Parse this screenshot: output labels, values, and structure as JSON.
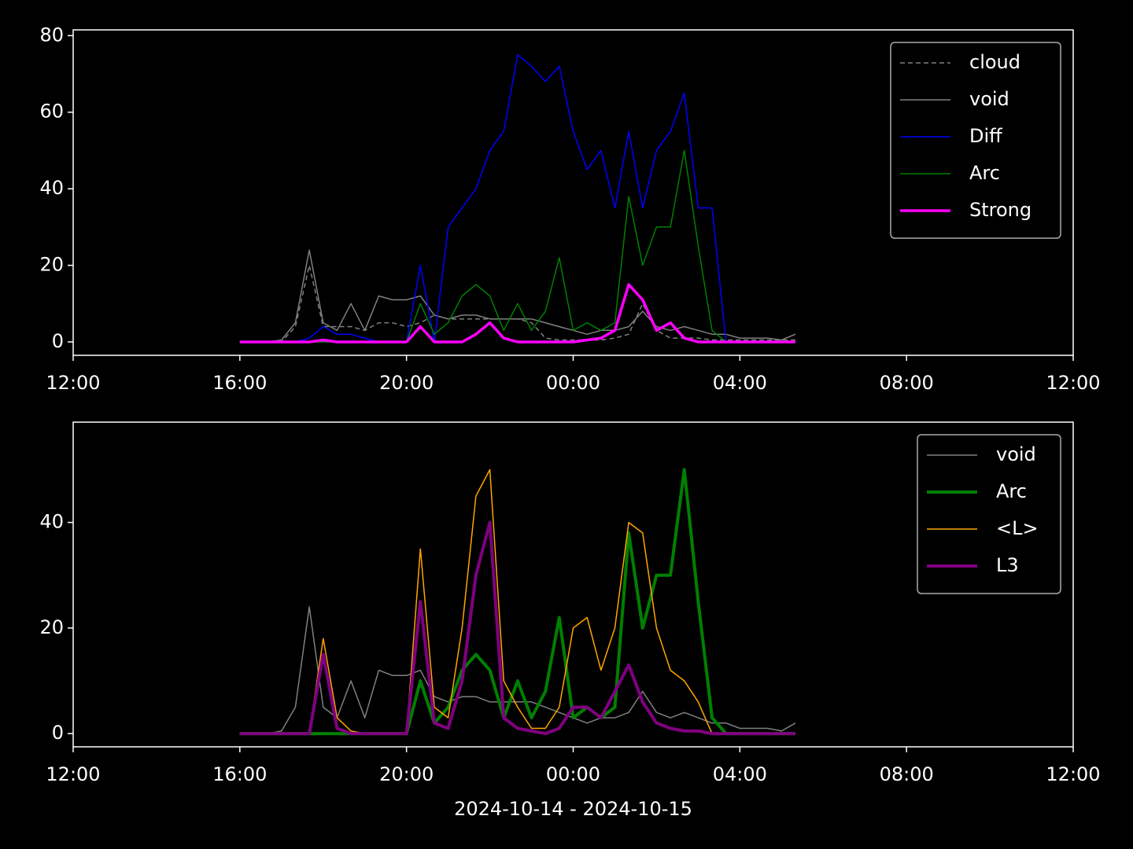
{
  "chart_data": [
    {
      "type": "line",
      "x": [
        "2024-10-14T16:00",
        "2024-10-14T16:20",
        "2024-10-14T16:40",
        "2024-10-14T17:00",
        "2024-10-14T17:20",
        "2024-10-14T17:40",
        "2024-10-14T18:00",
        "2024-10-14T18:20",
        "2024-10-14T18:40",
        "2024-10-14T19:00",
        "2024-10-14T19:20",
        "2024-10-14T19:40",
        "2024-10-14T20:00",
        "2024-10-14T20:20",
        "2024-10-14T20:40",
        "2024-10-14T21:00",
        "2024-10-14T21:20",
        "2024-10-14T21:40",
        "2024-10-14T22:00",
        "2024-10-14T22:20",
        "2024-10-14T22:40",
        "2024-10-14T23:00",
        "2024-10-14T23:20",
        "2024-10-14T23:40",
        "2024-10-15T00:00",
        "2024-10-15T00:20",
        "2024-10-15T00:40",
        "2024-10-15T01:00",
        "2024-10-15T01:20",
        "2024-10-15T01:40",
        "2024-10-15T02:00",
        "2024-10-15T02:20",
        "2024-10-15T02:40",
        "2024-10-15T03:00",
        "2024-10-15T03:20",
        "2024-10-15T03:40",
        "2024-10-15T04:00",
        "2024-10-15T04:20",
        "2024-10-15T04:40",
        "2024-10-15T05:00",
        "2024-10-15T05:20"
      ],
      "series": [
        {
          "name": "cloud",
          "color": "#808080",
          "linestyle": "dashed",
          "linewidth": 1.5,
          "values": [
            0,
            0,
            0,
            0,
            4,
            20,
            4,
            4,
            4,
            3,
            5,
            5,
            4,
            5,
            7,
            6,
            6,
            6,
            6,
            6,
            6,
            5,
            1,
            0.5,
            0.5,
            0.5,
            0.5,
            1,
            2,
            10,
            3,
            1,
            1,
            1,
            0.5,
            0.5,
            0.5,
            0.5,
            0.5,
            0.5,
            0.5
          ]
        },
        {
          "name": "void",
          "color": "#808080",
          "linestyle": "solid",
          "linewidth": 1.5,
          "values": [
            0,
            0,
            0,
            0.5,
            5,
            24,
            5,
            3,
            10,
            3,
            12,
            11,
            11,
            12,
            7,
            6,
            7,
            7,
            6,
            6,
            6,
            6,
            5,
            4,
            3,
            2,
            3,
            3,
            4,
            8,
            4,
            3,
            4,
            3,
            2,
            2,
            1,
            1,
            1,
            0.5,
            2
          ]
        },
        {
          "name": "Diff",
          "color": "#0000ff",
          "linestyle": "solid",
          "linewidth": 1.5,
          "values": [
            0,
            0,
            0,
            0,
            0,
            1,
            4,
            2,
            2,
            1,
            0,
            0,
            0,
            20,
            0,
            30,
            35,
            40,
            50,
            55,
            75,
            72,
            68,
            72,
            55,
            45,
            50,
            35,
            55,
            35,
            50,
            55,
            65,
            35,
            35,
            0,
            0,
            0,
            0,
            0,
            0
          ]
        },
        {
          "name": "Arc",
          "color": "#008000",
          "linestyle": "solid",
          "linewidth": 1.5,
          "values": [
            0,
            0,
            0,
            0,
            0,
            0,
            0,
            0,
            0,
            0,
            0,
            0,
            0,
            10,
            2,
            5,
            12,
            15,
            12,
            3,
            10,
            3,
            8,
            22,
            3,
            5,
            3,
            5,
            38,
            20,
            30,
            30,
            50,
            25,
            3,
            0,
            0,
            0,
            0,
            0,
            0
          ]
        },
        {
          "name": "Strong",
          "color": "#ff00ff",
          "linestyle": "solid",
          "linewidth": 3.5,
          "values": [
            0,
            0,
            0,
            0,
            0,
            0,
            0.5,
            0,
            0,
            0,
            0,
            0,
            0,
            4,
            0,
            0,
            0,
            2,
            5,
            1,
            0,
            0,
            0,
            0,
            0,
            0.5,
            1,
            3,
            15,
            11,
            3,
            5,
            1,
            0,
            0,
            0,
            0,
            0,
            0,
            0,
            0
          ]
        }
      ],
      "xlim": [
        "2024-10-14T12:00",
        "2024-10-15T12:00"
      ],
      "xticks": [
        {
          "value": "2024-10-14T12:00",
          "label": "12:00"
        },
        {
          "value": "2024-10-14T16:00",
          "label": "16:00"
        },
        {
          "value": "2024-10-14T20:00",
          "label": "20:00"
        },
        {
          "value": "2024-10-15T00:00",
          "label": "00:00"
        },
        {
          "value": "2024-10-15T04:00",
          "label": "04:00"
        },
        {
          "value": "2024-10-15T08:00",
          "label": "08:00"
        },
        {
          "value": "2024-10-15T12:00",
          "label": "12:00"
        }
      ],
      "ylim": [
        -3.5,
        81.5
      ],
      "yticks": [
        0,
        20,
        40,
        60,
        80
      ],
      "legend": "upper right"
    },
    {
      "type": "line",
      "xlabel": "2024-10-14 - 2024-10-15",
      "x": [
        "2024-10-14T16:00",
        "2024-10-14T16:20",
        "2024-10-14T16:40",
        "2024-10-14T17:00",
        "2024-10-14T17:20",
        "2024-10-14T17:40",
        "2024-10-14T18:00",
        "2024-10-14T18:20",
        "2024-10-14T18:40",
        "2024-10-14T19:00",
        "2024-10-14T19:20",
        "2024-10-14T19:40",
        "2024-10-14T20:00",
        "2024-10-14T20:20",
        "2024-10-14T20:40",
        "2024-10-14T21:00",
        "2024-10-14T21:20",
        "2024-10-14T21:40",
        "2024-10-14T22:00",
        "2024-10-14T22:20",
        "2024-10-14T22:40",
        "2024-10-14T23:00",
        "2024-10-14T23:20",
        "2024-10-14T23:40",
        "2024-10-15T00:00",
        "2024-10-15T00:20",
        "2024-10-15T00:40",
        "2024-10-15T01:00",
        "2024-10-15T01:20",
        "2024-10-15T01:40",
        "2024-10-15T02:00",
        "2024-10-15T02:20",
        "2024-10-15T02:40",
        "2024-10-15T03:00",
        "2024-10-15T03:20",
        "2024-10-15T03:40",
        "2024-10-15T04:00",
        "2024-10-15T04:20",
        "2024-10-15T04:40",
        "2024-10-15T05:00",
        "2024-10-15T05:20"
      ],
      "series": [
        {
          "name": "void",
          "color": "#808080",
          "linestyle": "solid",
          "linewidth": 1.5,
          "values": [
            0,
            0,
            0,
            0.5,
            5,
            24,
            5,
            3,
            10,
            3,
            12,
            11,
            11,
            12,
            7,
            6,
            7,
            7,
            6,
            6,
            6,
            6,
            5,
            4,
            3,
            2,
            3,
            3,
            4,
            8,
            4,
            3,
            4,
            3,
            2,
            2,
            1,
            1,
            1,
            0.5,
            2
          ]
        },
        {
          "name": "Arc",
          "color": "#008000",
          "linestyle": "solid",
          "linewidth": 4,
          "values": [
            0,
            0,
            0,
            0,
            0,
            0,
            0,
            0,
            0,
            0,
            0,
            0,
            0,
            10,
            2,
            5,
            12,
            15,
            12,
            3,
            10,
            3,
            8,
            22,
            3,
            5,
            3,
            5,
            38,
            20,
            30,
            30,
            50,
            25,
            3,
            0,
            0,
            0,
            0,
            0,
            0
          ]
        },
        {
          "name": "<L>",
          "color": "#ffa500",
          "linestyle": "solid",
          "linewidth": 1.5,
          "values": [
            0,
            0,
            0,
            0,
            0,
            0,
            18,
            3,
            0.5,
            0,
            0,
            0,
            0,
            35,
            5,
            3,
            20,
            45,
            50,
            10,
            5,
            1,
            1,
            5,
            20,
            22,
            12,
            20,
            40,
            38,
            20,
            12,
            10,
            6,
            0,
            0,
            0,
            0,
            0,
            0,
            0
          ]
        },
        {
          "name": "L3",
          "color": "#800080",
          "linestyle": "solid",
          "linewidth": 4,
          "values": [
            0,
            0,
            0,
            0,
            0,
            0,
            15,
            1,
            0,
            0,
            0,
            0,
            0,
            25,
            2,
            1,
            10,
            30,
            40,
            3,
            1,
            0.5,
            0,
            1,
            5,
            5,
            3,
            8,
            13,
            6,
            2,
            1,
            0.5,
            0.5,
            0,
            0,
            0,
            0,
            0,
            0,
            0
          ]
        }
      ],
      "xlim": [
        "2024-10-14T12:00",
        "2024-10-15T12:00"
      ],
      "xticks": [
        {
          "value": "2024-10-14T12:00",
          "label": "12:00"
        },
        {
          "value": "2024-10-14T16:00",
          "label": "16:00"
        },
        {
          "value": "2024-10-14T20:00",
          "label": "20:00"
        },
        {
          "value": "2024-10-15T00:00",
          "label": "00:00"
        },
        {
          "value": "2024-10-15T04:00",
          "label": "04:00"
        },
        {
          "value": "2024-10-15T08:00",
          "label": "08:00"
        },
        {
          "value": "2024-10-15T12:00",
          "label": "12:00"
        }
      ],
      "ylim": [
        -2.5,
        59
      ],
      "yticks": [
        0,
        20,
        40
      ],
      "legend": "upper right"
    }
  ]
}
